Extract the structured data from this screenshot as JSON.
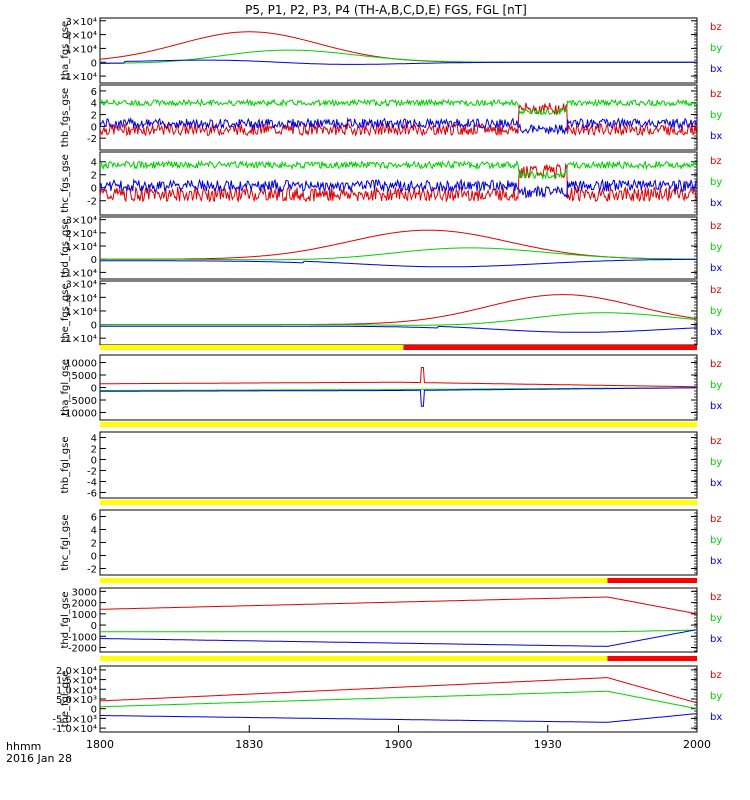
{
  "title": "P5, P1, P2, P3, P4 (TH-A,B,C,D,E) FGS, FGL [nT]",
  "footer": {
    "unit_label": "hhmm",
    "date_label": "2016 Jan 28"
  },
  "colors": {
    "bz": "#e00000",
    "by": "#00d000",
    "bx": "#0000e0",
    "flag_yellow": "#ffff00",
    "flag_red": "#ff0000",
    "axes": "#000000"
  },
  "chart_data": {
    "type": "line",
    "x_ticks": [
      "1800",
      "1830",
      "1900",
      "1930",
      "2000"
    ],
    "x_range_minutes": [
      0,
      120
    ],
    "panels": [
      {
        "ylabel": "tha_fgs_gse",
        "yticks": [
          "3×10⁴",
          "2×10⁴",
          "1×10⁴",
          "0",
          "-1×10⁴"
        ],
        "ytick_vals": [
          30000,
          20000,
          10000,
          0,
          -10000
        ],
        "ylim": [
          -15000,
          32000
        ],
        "legend": [
          "bz",
          "by",
          "bx"
        ],
        "profile": "dip",
        "center": 30,
        "width": 14,
        "amp": [
          22000,
          10000,
          2500
        ],
        "noise": 0,
        "flag": null
      },
      {
        "ylabel": "thb_fgs_gse",
        "yticks": [
          "6",
          "4",
          "2",
          "0",
          "-2"
        ],
        "ytick_vals": [
          6,
          4,
          2,
          0,
          -2
        ],
        "ylim": [
          -4,
          7
        ],
        "legend": [
          "bz",
          "by",
          "bx"
        ],
        "profile": "noisy",
        "levels": [
          -0.5,
          4.0,
          0.5
        ],
        "noise": 1.0,
        "flag": null
      },
      {
        "ylabel": "thc_fgs_gse",
        "yticks": [
          "4",
          "2",
          "0",
          "-2"
        ],
        "ytick_vals": [
          4,
          2,
          0,
          -2
        ],
        "ylim": [
          -4.2,
          5.5
        ],
        "legend": [
          "bz",
          "by",
          "bx"
        ],
        "profile": "noisy",
        "levels": [
          -1.0,
          3.5,
          0.3
        ],
        "noise": 1.1,
        "flag": null
      },
      {
        "ylabel": "thd_fgs_gse",
        "yticks": [
          "3×10⁴",
          "2×10⁴",
          "1×10⁴",
          "0",
          "-1×10⁴"
        ],
        "ytick_vals": [
          30000,
          20000,
          10000,
          0,
          -10000
        ],
        "ylim": [
          -15000,
          32000
        ],
        "legend": [
          "bz",
          "by",
          "bx"
        ],
        "profile": "dip",
        "center": 66,
        "width": 16,
        "amp": [
          22000,
          10000,
          -4000
        ],
        "noise": 0,
        "flag": null
      },
      {
        "ylabel": "the_fgs_gse",
        "yticks": [
          "3×10⁴",
          "2×10⁴",
          "1×10⁴",
          "0",
          "-1×10⁴"
        ],
        "ytick_vals": [
          30000,
          20000,
          10000,
          0,
          -10000
        ],
        "ylim": [
          -15000,
          32000
        ],
        "legend": [
          "bz",
          "by",
          "bx"
        ],
        "profile": "dip",
        "center": 93,
        "width": 15,
        "amp": [
          22000,
          10000,
          -4000
        ],
        "noise": 0,
        "flag": null
      },
      {
        "ylabel": "tha_fgl_gse",
        "yticks": [
          "10000",
          "5000",
          "0",
          "-5000",
          "-10000"
        ],
        "ytick_vals": [
          10000,
          5000,
          0,
          -5000,
          -10000
        ],
        "ylim": [
          -13000,
          13000
        ],
        "legend": [
          "bz",
          "by",
          "bx"
        ],
        "profile": "spike",
        "flag": {
          "yellow_end": 61,
          "red_end": 120
        }
      },
      {
        "ylabel": "thb_fgl_gse",
        "yticks": [
          "4",
          "2",
          "0",
          "-2",
          "-4",
          "-6"
        ],
        "ytick_vals": [
          4,
          2,
          0,
          -2,
          -4,
          -6
        ],
        "ylim": [
          -7,
          5
        ],
        "legend": [
          "bz",
          "by",
          "bx"
        ],
        "profile": "empty",
        "flag": {
          "yellow_end": 120,
          "red_end": 120
        }
      },
      {
        "ylabel": "thc_fgl_gse",
        "yticks": [
          "6",
          "4",
          "2",
          "0",
          "-2"
        ],
        "ytick_vals": [
          6,
          4,
          2,
          0,
          -2
        ],
        "ylim": [
          -3,
          7
        ],
        "legend": [
          "bz",
          "by",
          "bx"
        ],
        "profile": "empty",
        "flag": {
          "yellow_end": 120,
          "red_end": 120
        }
      },
      {
        "ylabel": "thd_fgl_gse",
        "yticks": [
          "3000",
          "2000",
          "1000",
          "0",
          "-1000",
          "-2000"
        ],
        "ytick_vals": [
          3000,
          2000,
          1000,
          0,
          -1000,
          -2000
        ],
        "ylim": [
          -2400,
          3300
        ],
        "legend": [
          "bz",
          "by",
          "bx"
        ],
        "profile": "ramp",
        "ramp": {
          "bz": [
            1400,
            2500,
            1000
          ],
          "by": [
            -600,
            -600,
            -450
          ],
          "bx": [
            -1200,
            -1900,
            -400
          ]
        },
        "flag": {
          "yellow_end": 102,
          "red_end": 120
        }
      },
      {
        "ylabel": "the_fgl_gse",
        "yticks": [
          "2.0×10⁴",
          "1.5×10⁴",
          "1.0×10⁴",
          "5.0×10³",
          "0",
          "-5.0×10³",
          "-1.0×10⁴"
        ],
        "ytick_vals": [
          20000,
          15000,
          10000,
          5000,
          0,
          -5000,
          -10000
        ],
        "ylim": [
          -12000,
          22000
        ],
        "legend": [
          "bz",
          "by",
          "bx"
        ],
        "profile": "ramp",
        "ramp": {
          "bz": [
            4000,
            16000,
            3000
          ],
          "by": [
            1000,
            9000,
            0
          ],
          "bx": [
            -3500,
            -7000,
            -2500
          ]
        },
        "flag": {
          "yellow_end": 102,
          "red_end": 120
        }
      }
    ]
  }
}
